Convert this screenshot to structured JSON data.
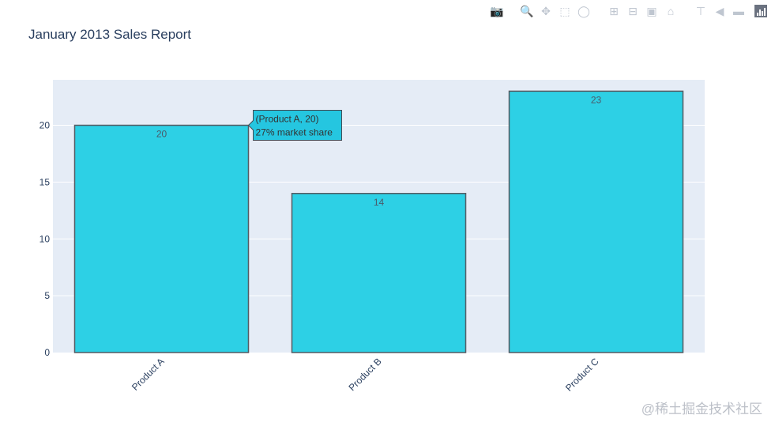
{
  "chart_data": {
    "type": "bar",
    "title": "January 2013 Sales Report",
    "categories": [
      "Product A",
      "Product B",
      "Product C"
    ],
    "values": [
      20,
      14,
      23
    ],
    "data_labels": [
      "20",
      "14",
      "23"
    ],
    "ylim": [
      0,
      24
    ],
    "yticks": [
      0,
      5,
      10,
      15,
      20
    ],
    "grid": true,
    "bar_color": "#2dd0e5",
    "bar_outline": "#555b63",
    "plot_bg": "#e5ecf6",
    "tooltip": {
      "line1": "(Product A, 20)",
      "line2": "27% market share",
      "bg": "#25c6e0"
    }
  },
  "toolbar": {
    "icons": [
      "camera-icon",
      "zoom-icon",
      "pan-icon",
      "box-select-icon",
      "lasso-select-icon",
      "zoom-in-icon",
      "zoom-out-icon",
      "autoscale-icon",
      "home-icon",
      "spike-lines-icon",
      "hover-closest-icon",
      "hover-compare-icon",
      "plotly-logo-icon"
    ]
  },
  "watermark": "@稀土掘金技术社区"
}
